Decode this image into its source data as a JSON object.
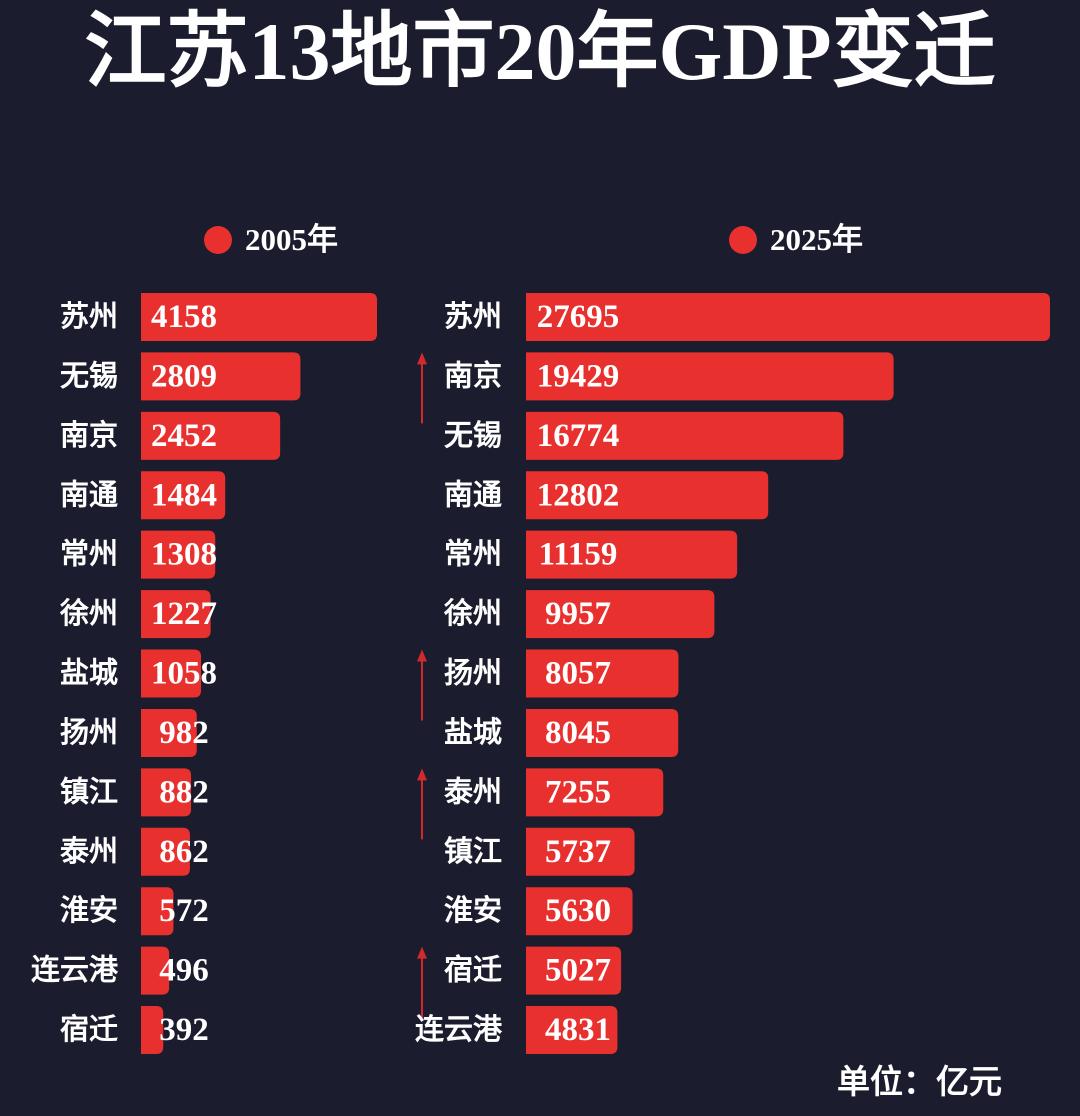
{
  "title": "江苏13地市20年GDP变迁",
  "unit": "单位：亿元",
  "colors": {
    "background": "#1b1c2e",
    "bar": "#e8312f",
    "text": "#ffffff",
    "arrow": "#d02a2c"
  },
  "legend_position": "top",
  "rank_up_marker": "up-arrow-icon",
  "chart_data": [
    {
      "type": "bar",
      "orientation": "horizontal",
      "grid": false,
      "series_name": "2005年",
      "categories": [
        "苏州",
        "无锡",
        "南京",
        "南通",
        "常州",
        "徐州",
        "盐城",
        "扬州",
        "镇江",
        "泰州",
        "淮安",
        "连云港",
        "宿迁"
      ],
      "values": [
        4158,
        2809,
        2452,
        1484,
        1308,
        1227,
        1058,
        982,
        882,
        862,
        572,
        496,
        392
      ]
    },
    {
      "type": "bar",
      "orientation": "horizontal",
      "grid": false,
      "series_name": "2025年",
      "categories": [
        "苏州",
        "南京",
        "无锡",
        "南通",
        "常州",
        "徐州",
        "扬州",
        "盐城",
        "泰州",
        "镇江",
        "淮安",
        "宿迁",
        "连云港"
      ],
      "values": [
        27695,
        19429,
        16774,
        12802,
        11159,
        9957,
        8057,
        8045,
        7255,
        5737,
        5630,
        5027,
        4831
      ],
      "rank_up": [
        false,
        true,
        false,
        false,
        false,
        false,
        true,
        false,
        true,
        false,
        false,
        true,
        false
      ]
    }
  ]
}
